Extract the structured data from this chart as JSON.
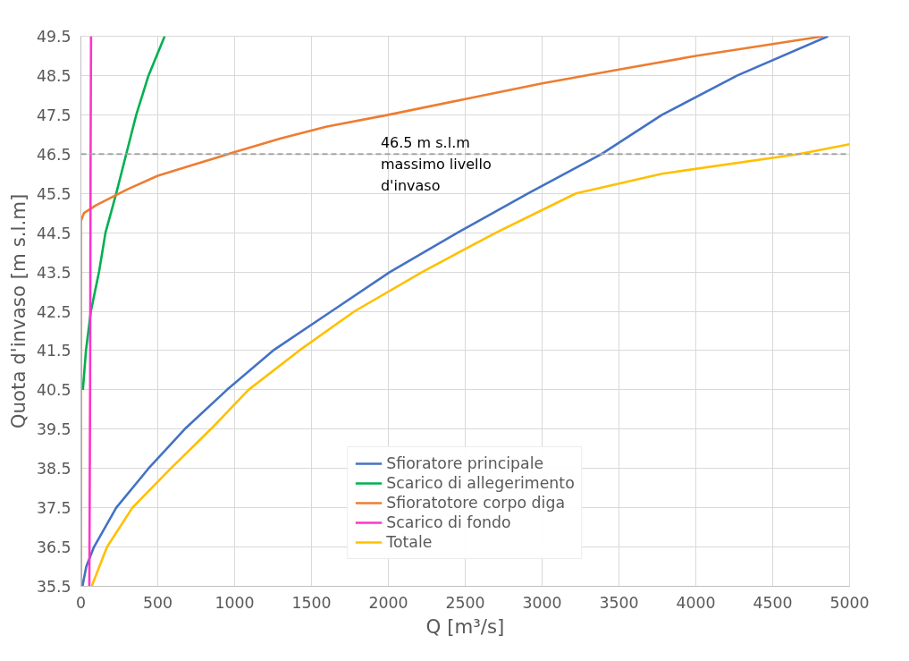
{
  "chart_data": {
    "type": "line",
    "xlabel": "Q [m³/s]",
    "ylabel": "Quota d'invaso [m s.l.m]",
    "xlim": [
      0,
      5000
    ],
    "ylim": [
      35.5,
      49.5
    ],
    "xticks": [
      0,
      500,
      1000,
      1500,
      2000,
      2500,
      3000,
      3500,
      4000,
      4500,
      5000
    ],
    "yticks": [
      35.5,
      36.5,
      37.5,
      38.5,
      39.5,
      40.5,
      41.5,
      42.5,
      43.5,
      44.5,
      45.5,
      46.5,
      47.5,
      48.5,
      49.5
    ],
    "grid": true,
    "legend": "bottom",
    "marker": "none",
    "line_style": "solid",
    "series": [
      {
        "name": "Sfioratore principale",
        "color": "#4472c4",
        "x": [
          10,
          35,
          85,
          230,
          440,
          675,
          950,
          1250,
          1630,
          2010,
          2450,
          2910,
          3385,
          3780,
          4270,
          4860
        ],
        "values": [
          35.5,
          36.0,
          36.5,
          37.5,
          38.5,
          39.5,
          40.5,
          41.5,
          42.5,
          43.5,
          44.5,
          45.5,
          46.5,
          47.5,
          48.5,
          49.5
        ]
      },
      {
        "name": "Scarico di allegerimento",
        "color": "#00b050",
        "x": [
          13,
          33,
          65,
          118,
          160,
          230,
          295,
          360,
          440,
          545
        ],
        "values": [
          40.5,
          41.5,
          42.5,
          43.5,
          44.5,
          45.5,
          46.5,
          47.5,
          48.5,
          49.5
        ]
      },
      {
        "name": "Sfioratotore corpo diga",
        "color": "#ed7d31",
        "x": [
          0,
          0,
          20,
          100,
          300,
          500,
          750,
          1000,
          1300,
          1600,
          2000,
          2500,
          3000,
          3500,
          4000,
          4500,
          4830
        ],
        "values": [
          35.5,
          44.8,
          45.0,
          45.2,
          45.6,
          45.95,
          46.25,
          46.55,
          46.9,
          47.2,
          47.5,
          47.9,
          48.3,
          48.65,
          49.0,
          49.3,
          49.5
        ]
      },
      {
        "name": "Scarico di fondo",
        "color": "#ff33cc",
        "x": [
          55,
          60,
          63,
          66
        ],
        "values": [
          35.5,
          40.5,
          46.2,
          49.5
        ]
      },
      {
        "name": "Totale",
        "color": "#ffc000",
        "x": [
          70,
          170,
          335,
          585,
          845,
          1090,
          1420,
          1780,
          2220,
          2700,
          3220,
          3780,
          4670,
          5000
        ],
        "values": [
          35.5,
          36.5,
          37.5,
          38.5,
          39.5,
          40.5,
          41.5,
          42.5,
          43.5,
          44.5,
          45.5,
          46.0,
          46.5,
          46.75
        ]
      }
    ],
    "ref_lines": [
      {
        "axis": "y",
        "value": 46.5,
        "color": "#a5a5a5",
        "line_style": "dashed",
        "label": "46.5 m s.l.m\nmassimo livello\nd'invaso"
      }
    ]
  }
}
